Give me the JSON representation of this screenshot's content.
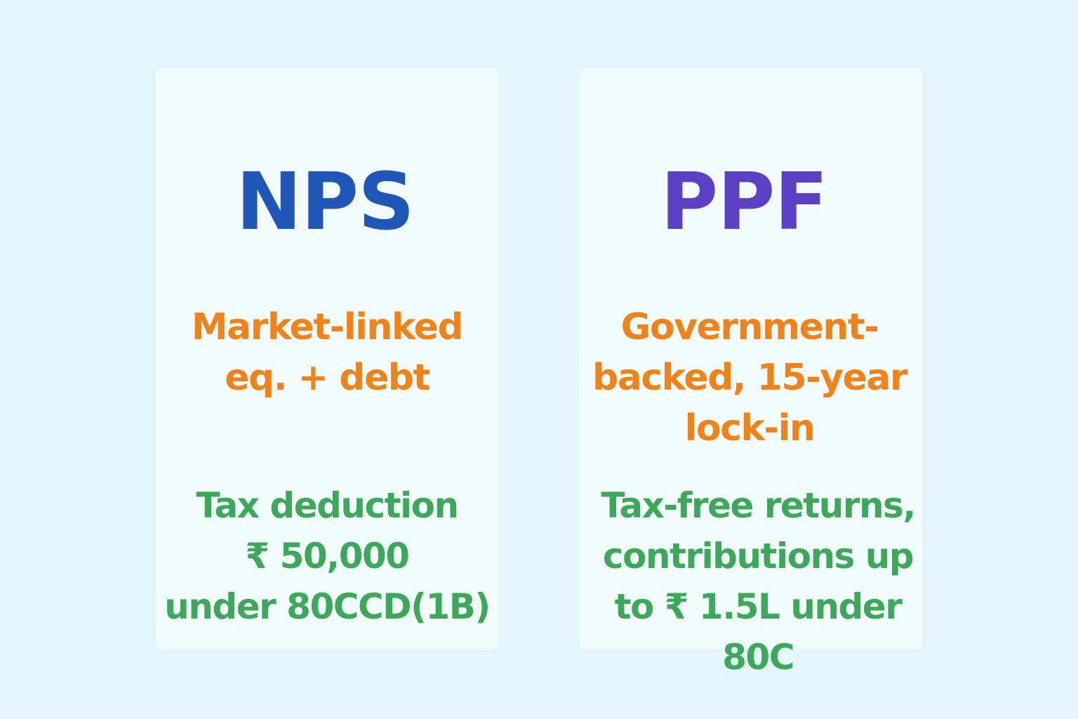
{
  "cards": [
    {
      "title": "NPS",
      "feature_lines": [
        "Market-linked",
        "eq. + debt"
      ],
      "benefit_lines": [
        "Tax deduction",
        "₹ 50,000",
        "under 80CCD(1B)"
      ]
    },
    {
      "title": "PPF",
      "feature_lines": [
        "Government-",
        "backed, 15-year",
        "lock-in"
      ],
      "benefit_lines": [
        "Tax-free returns,",
        "contributions up",
        "to ₹ 1.5L under",
        "80C"
      ]
    }
  ],
  "colors": {
    "background": "#e3f5fc",
    "card": "#f1fbfc",
    "nps_title": "#1f56b8",
    "ppf_title": "#5b42c4",
    "feature": "#ef8218",
    "benefit": "#3ea85a"
  }
}
